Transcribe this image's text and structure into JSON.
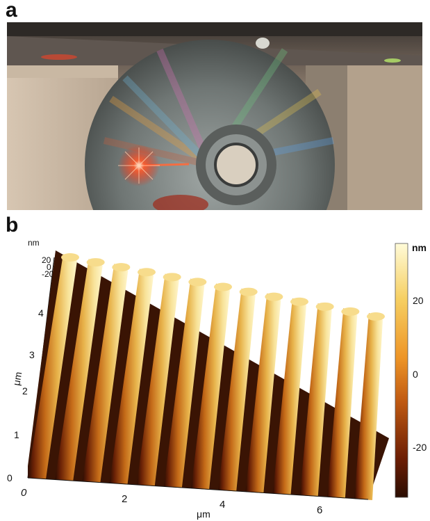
{
  "panel_a": {
    "letter": "a"
  },
  "panel_b": {
    "letter": "b",
    "z_unit": "nm",
    "z_ticks": [
      "20",
      "0",
      "-20"
    ],
    "y_unit": "μm",
    "y_ticks": [
      "0",
      "1",
      "2",
      "3",
      "4"
    ],
    "x_unit": "μm",
    "x_ticks": [
      "0",
      "2",
      "4",
      "6"
    ],
    "colorbar": {
      "unit": "nm",
      "ticks": [
        "20",
        "0",
        "-20"
      ],
      "colors": [
        "#fffbd8",
        "#f6cf62",
        "#ee9527",
        "#c05a12",
        "#6b1d04",
        "#2a0d02"
      ]
    }
  }
}
